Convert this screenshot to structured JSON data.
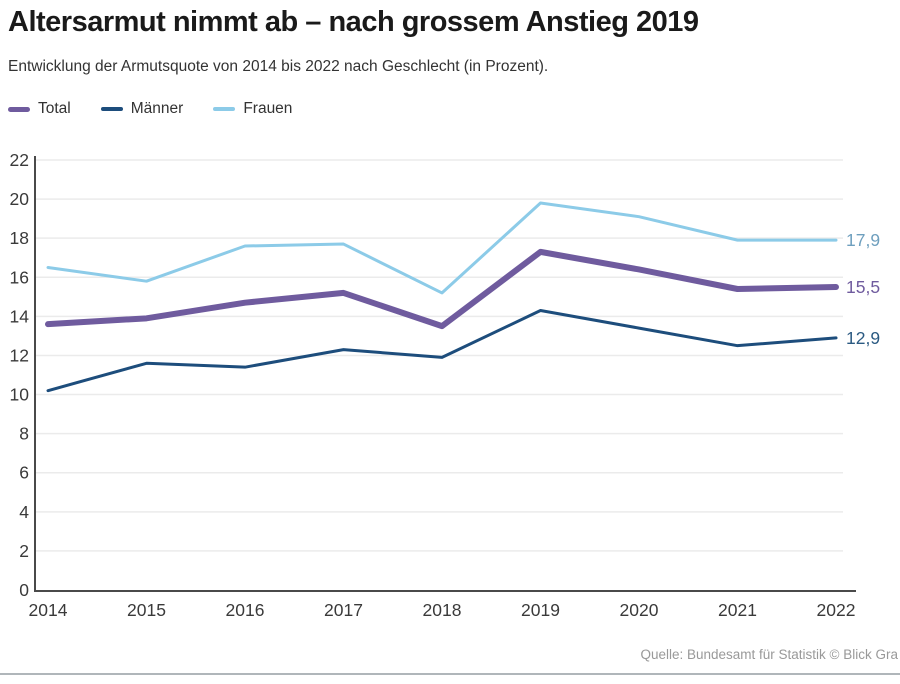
{
  "header": {
    "title": "Altersarmut nimmt ab – nach grossem Anstieg 2019",
    "subtitle": "Entwicklung der Armutsquote von 2014 bis 2022 nach Geschlecht (in Prozent)."
  },
  "footer": {
    "source": "Quelle: Bundesamt für Statistik © Blick Gra"
  },
  "chart_data": {
    "type": "line",
    "title": "Altersarmut nimmt ab – nach grossem Anstieg 2019",
    "subtitle": "Entwicklung der Armutsquote von 2014 bis 2022 nach Geschlecht (in Prozent).",
    "categories": [
      "2014",
      "2015",
      "2016",
      "2017",
      "2018",
      "2019",
      "2020",
      "2021",
      "2022"
    ],
    "series": [
      {
        "id": "total",
        "name": "Total",
        "color": "#6F5B9E",
        "stroke_width": 6,
        "values": [
          13.6,
          13.9,
          14.7,
          15.2,
          13.5,
          17.3,
          16.4,
          15.4,
          15.5
        ]
      },
      {
        "id": "maenner",
        "name": "Männer",
        "color": "#1D4D7C",
        "stroke_width": 3,
        "values": [
          10.2,
          11.6,
          11.4,
          12.3,
          11.9,
          14.3,
          13.4,
          12.5,
          12.9
        ]
      },
      {
        "id": "frauen",
        "name": "Frauen",
        "color": "#8CCBE8",
        "stroke_width": 3,
        "values": [
          16.5,
          15.8,
          17.6,
          17.7,
          15.2,
          19.8,
          19.1,
          17.9,
          17.9
        ]
      }
    ],
    "end_labels": [
      {
        "text": "17,9",
        "value": 17.9,
        "color": "#6E9FBE"
      },
      {
        "text": "15,5",
        "value": 15.5,
        "color": "#6F5B9E"
      },
      {
        "text": "12,9",
        "value": 12.9,
        "color": "#2B5A82"
      }
    ],
    "ylim": [
      0,
      22
    ],
    "ytick_step": 2,
    "grid": "horizontal",
    "legend_position": "top-left",
    "axis_color": "#4a4a4a",
    "grid_color": "#ebebeb",
    "tick_label_color": "#3a3a3a"
  }
}
